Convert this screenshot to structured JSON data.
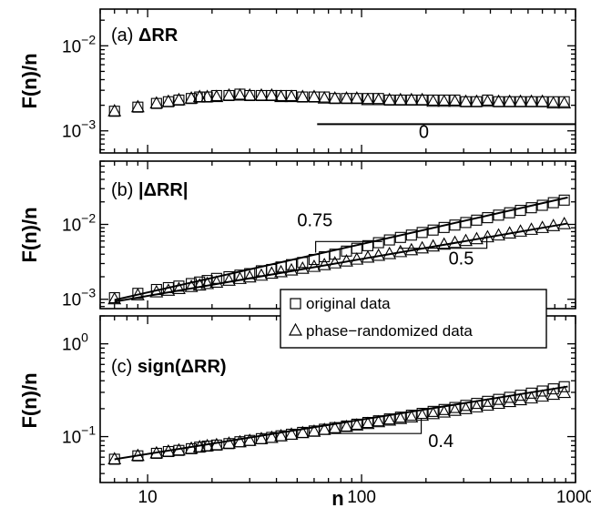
{
  "chart_data": {
    "type": "scatter",
    "x_scale": "log",
    "y_scale": "log",
    "xlabel": "n",
    "xlim": [
      6,
      1000
    ],
    "x_ticks": [
      {
        "value": 10,
        "label": "10"
      },
      {
        "value": 100,
        "label": "100"
      },
      {
        "value": 1000,
        "label": "1000"
      }
    ],
    "grid": false,
    "legend": {
      "placement": "between panels (b) and (c), center-right",
      "entries": [
        {
          "marker": "square",
          "label": "original data"
        },
        {
          "marker": "triangle",
          "label": "phase−randomized data"
        }
      ]
    },
    "panels": [
      {
        "id": "a",
        "label_prefix": "(a) ",
        "label_bold": "ΔRR",
        "ylabel": "F(n)/n",
        "ylim": [
          0.00055,
          0.027
        ],
        "y_ticks": [
          {
            "value": 0.01,
            "base": "10",
            "exp": "−2"
          },
          {
            "value": 0.001,
            "base": "10",
            "exp": "−3"
          }
        ],
        "series": [
          {
            "name": "original data",
            "marker": "square",
            "x": [
              7,
              9,
              11,
              12.5,
              14,
              16,
              17.5,
              19,
              21,
              24,
              27,
              30,
              34,
              38,
              42,
              47,
              53,
              60,
              67,
              75,
              85,
              95,
              107,
              120,
              135,
              152,
              171,
              192,
              216,
              243,
              273,
              307,
              345,
              388,
              437,
              492,
              553,
              622,
              700,
              788,
              886
            ],
            "y": [
              0.0017,
              0.0019,
              0.0021,
              0.0022,
              0.0023,
              0.0024,
              0.0025,
              0.0025,
              0.0026,
              0.0026,
              0.0027,
              0.0026,
              0.0026,
              0.0026,
              0.0026,
              0.0026,
              0.0025,
              0.0025,
              0.0025,
              0.0024,
              0.0024,
              0.0024,
              0.0024,
              0.0024,
              0.0023,
              0.0023,
              0.0023,
              0.0023,
              0.0023,
              0.0023,
              0.0023,
              0.0022,
              0.0022,
              0.0023,
              0.0022,
              0.0022,
              0.0022,
              0.0022,
              0.0022,
              0.0022,
              0.0022
            ]
          },
          {
            "name": "phase−randomized data",
            "marker": "triangle",
            "x": [
              7,
              9,
              11,
              12.5,
              14,
              16,
              17.5,
              19,
              21,
              24,
              27,
              30,
              34,
              38,
              42,
              47,
              53,
              60,
              67,
              75,
              85,
              95,
              107,
              120,
              135,
              152,
              171,
              192,
              216,
              243,
              273,
              307,
              345,
              388,
              437,
              492,
              553,
              622,
              700,
              788,
              886
            ],
            "y": [
              0.0017,
              0.0019,
              0.0021,
              0.0022,
              0.0023,
              0.0024,
              0.0025,
              0.0025,
              0.0025,
              0.0026,
              0.0026,
              0.0026,
              0.0026,
              0.0026,
              0.0025,
              0.0025,
              0.0025,
              0.0025,
              0.0024,
              0.0024,
              0.0024,
              0.0024,
              0.0023,
              0.0023,
              0.0023,
              0.0023,
              0.0023,
              0.0023,
              0.0022,
              0.0022,
              0.0022,
              0.0022,
              0.0022,
              0.0022,
              0.0022,
              0.0022,
              0.0022,
              0.0022,
              0.0022,
              0.0021,
              0.0021
            ]
          }
        ],
        "guides": [
          {
            "label": "0",
            "slope": 0,
            "points": [
              [
                62,
                0.0012
              ],
              [
                1000,
                0.0012
              ]
            ],
            "label_at": [
              185,
              0.00083
            ]
          }
        ]
      },
      {
        "id": "b",
        "label_prefix": "(b) ",
        "label_bold": "|ΔRR|",
        "ylabel": "F(n)/n",
        "ylim": [
          0.00075,
          0.07
        ],
        "y_ticks": [
          {
            "value": 0.01,
            "base": "10",
            "exp": "−2"
          },
          {
            "value": 0.001,
            "base": "10",
            "exp": "−3"
          }
        ],
        "series": [
          {
            "name": "original data",
            "marker": "square",
            "x": [
              7,
              9,
              11,
              12.5,
              14,
              16,
              17.5,
              19,
              21,
              24,
              27,
              30,
              34,
              38,
              42,
              47,
              53,
              60,
              67,
              75,
              85,
              95,
              107,
              120,
              135,
              152,
              171,
              192,
              216,
              243,
              273,
              307,
              345,
              388,
              437,
              492,
              553,
              622,
              700,
              788,
              886
            ],
            "y": [
              0.00105,
              0.0012,
              0.00135,
              0.00143,
              0.0015,
              0.00162,
              0.0017,
              0.00178,
              0.0019,
              0.002,
              0.0021,
              0.0022,
              0.0024,
              0.0025,
              0.0027,
              0.0029,
              0.0031,
              0.0034,
              0.0037,
              0.004,
              0.0044,
              0.0048,
              0.0052,
              0.0057,
              0.0062,
              0.0067,
              0.0072,
              0.0078,
              0.0084,
              0.0091,
              0.0098,
              0.0106,
              0.0114,
              0.0123,
              0.0133,
              0.0143,
              0.0154,
              0.0167,
              0.018,
              0.0195,
              0.0211
            ]
          },
          {
            "name": "phase−randomized data",
            "marker": "triangle",
            "x": [
              7,
              9,
              11,
              12.5,
              14,
              16,
              17.5,
              19,
              21,
              24,
              27,
              30,
              34,
              38,
              42,
              47,
              53,
              60,
              67,
              75,
              85,
              95,
              107,
              120,
              135,
              152,
              171,
              192,
              216,
              243,
              273,
              307,
              345,
              388,
              437,
              492,
              553,
              622,
              700,
              788,
              886
            ],
            "y": [
              0.001,
              0.00113,
              0.00124,
              0.0013,
              0.00137,
              0.00146,
              0.00153,
              0.0016,
              0.00167,
              0.00177,
              0.00187,
              0.00196,
              0.00207,
              0.0022,
              0.0023,
              0.00243,
              0.00256,
              0.00271,
              0.00286,
              0.00302,
              0.0032,
              0.00339,
              0.0036,
              0.00381,
              0.00402,
              0.00427,
              0.00452,
              0.00479,
              0.00508,
              0.00537,
              0.00567,
              0.006,
              0.00635,
              0.00673,
              0.00712,
              0.00757,
              0.00802,
              0.00848,
              0.00897,
              0.00951,
              0.0101
            ]
          }
        ],
        "guides": [
          {
            "label": "0.75",
            "slope": 0.75,
            "points": [
              [
                61,
                0.0042
              ],
              [
                61,
                0.0059
              ],
              [
                125,
                0.0059
              ]
            ],
            "label_at": [
              50,
              0.0094
            ]
          },
          {
            "label": "0.5",
            "slope": 0.5,
            "points": [
              [
                150,
                0.0048
              ],
              [
                385,
                0.0048
              ],
              [
                385,
                0.0071
              ]
            ],
            "label_at": [
              255,
              0.0029
            ]
          }
        ]
      },
      {
        "id": "c",
        "label_prefix": "(c) ",
        "label_bold": "sign(ΔRR)",
        "ylabel": "F(n)/n",
        "ylim": [
          0.032,
          2.0
        ],
        "y_ticks": [
          {
            "value": 1,
            "base": "10",
            "exp": "0"
          },
          {
            "value": 0.1,
            "base": "10",
            "exp": "−1"
          }
        ],
        "series": [
          {
            "name": "original data",
            "marker": "square",
            "x": [
              7,
              9,
              11,
              12.5,
              14,
              16,
              17.5,
              19,
              21,
              24,
              27,
              30,
              34,
              38,
              42,
              47,
              53,
              60,
              67,
              75,
              85,
              95,
              107,
              120,
              135,
              152,
              171,
              192,
              216,
              243,
              273,
              307,
              345,
              388,
              437,
              492,
              553,
              622,
              700,
              788,
              886
            ],
            "y": [
              0.057,
              0.062,
              0.066,
              0.069,
              0.071,
              0.074,
              0.077,
              0.079,
              0.081,
              0.084,
              0.088,
              0.091,
              0.095,
              0.098,
              0.102,
              0.106,
              0.111,
              0.115,
              0.12,
              0.125,
              0.13,
              0.136,
              0.142,
              0.148,
              0.155,
              0.162,
              0.17,
              0.178,
              0.187,
              0.196,
              0.206,
              0.217,
              0.228,
              0.24,
              0.252,
              0.265,
              0.279,
              0.294,
              0.31,
              0.327,
              0.345
            ]
          },
          {
            "name": "phase−randomized data",
            "marker": "triangle",
            "x": [
              7,
              9,
              11,
              12.5,
              14,
              16,
              17.5,
              19,
              21,
              24,
              27,
              30,
              34,
              38,
              42,
              47,
              53,
              60,
              67,
              75,
              85,
              95,
              107,
              120,
              135,
              152,
              171,
              192,
              216,
              243,
              273,
              307,
              345,
              388,
              437,
              492,
              553,
              622,
              700,
              788,
              886
            ],
            "y": [
              0.057,
              0.062,
              0.066,
              0.069,
              0.071,
              0.074,
              0.077,
              0.079,
              0.081,
              0.084,
              0.087,
              0.09,
              0.094,
              0.097,
              0.101,
              0.105,
              0.109,
              0.113,
              0.118,
              0.122,
              0.127,
              0.132,
              0.137,
              0.143,
              0.149,
              0.155,
              0.161,
              0.168,
              0.175,
              0.182,
              0.19,
              0.198,
              0.207,
              0.216,
              0.226,
              0.236,
              0.247,
              0.258,
              0.27,
              0.283,
              0.296
            ]
          }
        ],
        "guides": [
          {
            "label": "0.4",
            "slope": 0.4,
            "points": [
              [
                72,
                0.108
              ],
              [
                190,
                0.108
              ],
              [
                190,
                0.158
              ]
            ],
            "label_at": [
              205,
              0.077
            ]
          }
        ]
      }
    ]
  }
}
